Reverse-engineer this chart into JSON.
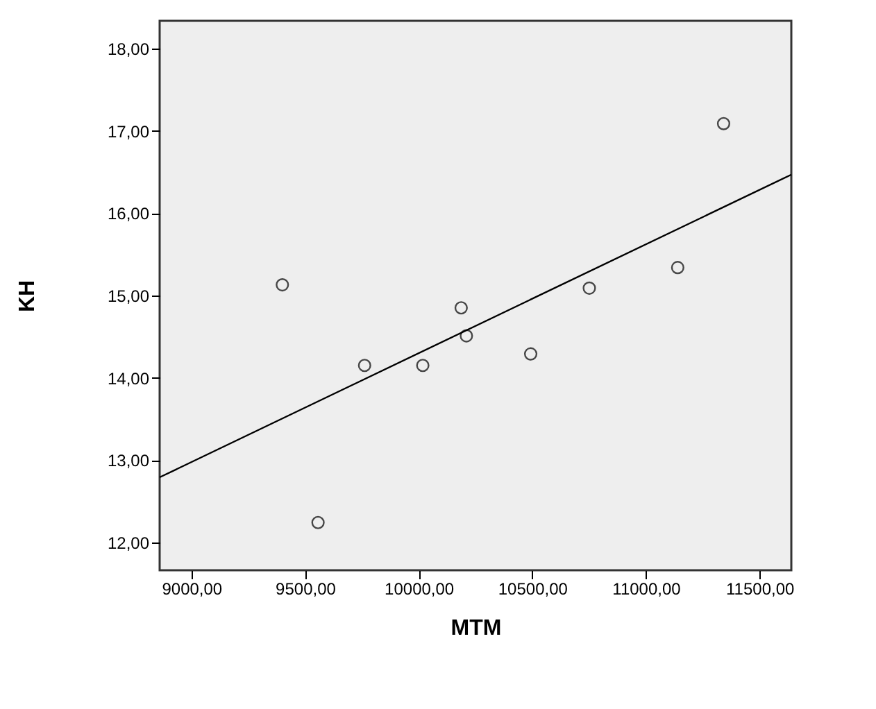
{
  "chart_data": {
    "type": "scatter",
    "xlabel": "MTM",
    "ylabel": "KH",
    "xlim": [
      8860,
      11640
    ],
    "ylim": [
      11.66,
      18.34
    ],
    "xticks": [
      {
        "value": 9000,
        "label": "9000,00"
      },
      {
        "value": 9500,
        "label": "9500,00"
      },
      {
        "value": 10000,
        "label": "10000,00"
      },
      {
        "value": 10500,
        "label": "10500,00"
      },
      {
        "value": 11000,
        "label": "11000,00"
      },
      {
        "value": 11500,
        "label": "11500,00"
      }
    ],
    "yticks": [
      {
        "value": 12,
        "label": "12,00"
      },
      {
        "value": 13,
        "label": "13,00"
      },
      {
        "value": 14,
        "label": "14,00"
      },
      {
        "value": 15,
        "label": "15,00"
      },
      {
        "value": 16,
        "label": "16,00"
      },
      {
        "value": 17,
        "label": "17,00"
      },
      {
        "value": 18,
        "label": "18,00"
      }
    ],
    "grid": false,
    "series": [
      {
        "marker": "circle",
        "color": "#000000",
        "x": [
          9400,
          9557,
          9762,
          10018,
          10187,
          10210,
          10493,
          10751,
          11140,
          11342
        ],
        "values": [
          15.13,
          12.24,
          14.15,
          14.15,
          14.85,
          14.51,
          14.29,
          15.09,
          15.34,
          17.09
        ]
      },
      {
        "type": "line",
        "marker": "none",
        "line_style": "solid",
        "color": "#000000",
        "x": [
          8860,
          11640
        ],
        "values": [
          12.79,
          16.47
        ]
      }
    ]
  }
}
